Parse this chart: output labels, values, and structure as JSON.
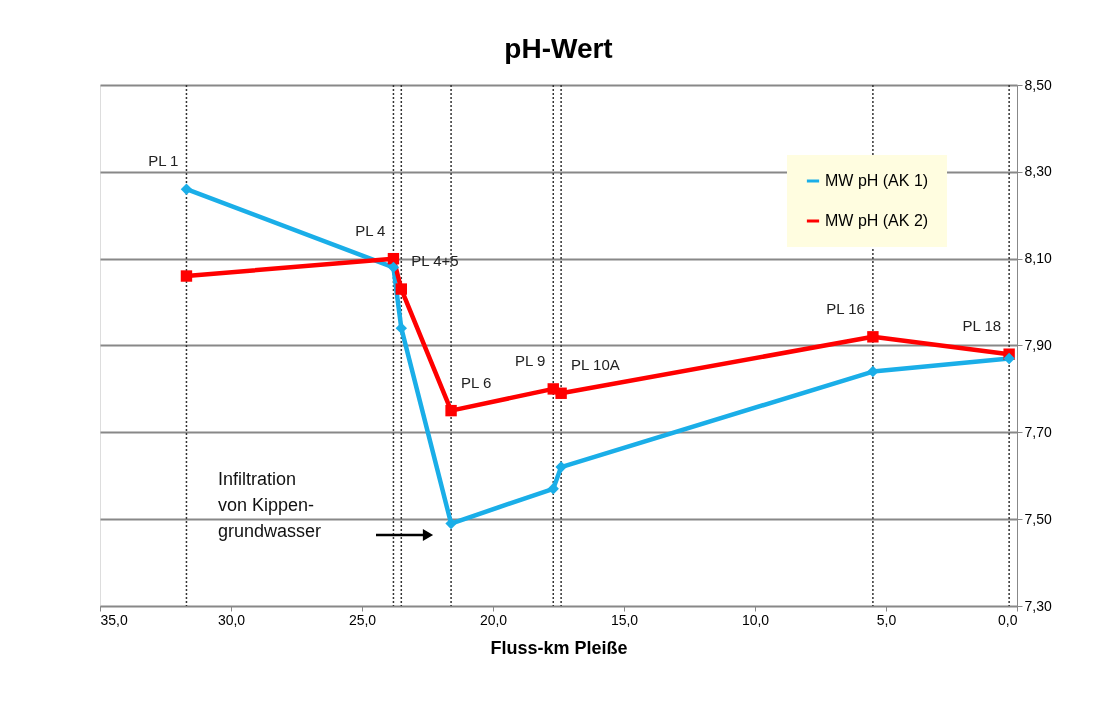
{
  "chart_data": {
    "type": "line",
    "title": "pH-Wert",
    "xlabel": "Fluss-km Pleiße",
    "xlim": [
      35,
      0
    ],
    "ylim": [
      7.3,
      8.5
    ],
    "xticks": [
      {
        "value": 35,
        "label": "35,0"
      },
      {
        "value": 30,
        "label": "30,0"
      },
      {
        "value": 25,
        "label": "25,0"
      },
      {
        "value": 20,
        "label": "20,0"
      },
      {
        "value": 15,
        "label": "15,0"
      },
      {
        "value": 10,
        "label": "10,0"
      },
      {
        "value": 5,
        "label": "5,0"
      },
      {
        "value": 0,
        "label": "0,0"
      }
    ],
    "yticks": [
      {
        "value": 7.3,
        "label": "7,30"
      },
      {
        "value": 7.5,
        "label": "7,50"
      },
      {
        "value": 7.7,
        "label": "7,70"
      },
      {
        "value": 7.9,
        "label": "7,90"
      },
      {
        "value": 8.1,
        "label": "8,10"
      },
      {
        "value": 8.3,
        "label": "8,30"
      },
      {
        "value": 8.5,
        "label": "8,50"
      }
    ],
    "x": [
      31.7,
      23.8,
      23.5,
      21.6,
      17.7,
      17.4,
      5.5,
      0.3
    ],
    "series": [
      {
        "name": "MW pH (AK 1)",
        "color": "#1aaee8",
        "marker": "diamond",
        "values": [
          8.26,
          8.08,
          7.94,
          7.49,
          7.57,
          7.62,
          7.84,
          7.87
        ]
      },
      {
        "name": "MW pH (AK 2)",
        "color": "#ff0000",
        "marker": "square",
        "values": [
          8.06,
          8.1,
          8.03,
          7.75,
          7.8,
          7.79,
          7.92,
          7.88
        ]
      }
    ],
    "ref_lines": [
      {
        "axis": "x",
        "value": 31.7,
        "label": "PL 1",
        "line_style": "dotted"
      },
      {
        "axis": "x",
        "value": 23.8,
        "label": "PL 4",
        "line_style": "dotted"
      },
      {
        "axis": "x",
        "value": 23.5,
        "label": "PL 4+5",
        "line_style": "dotted"
      },
      {
        "axis": "x",
        "value": 21.6,
        "label": "PL 6",
        "line_style": "dotted"
      },
      {
        "axis": "x",
        "value": 17.7,
        "label": "PL 9",
        "line_style": "dotted"
      },
      {
        "axis": "x",
        "value": 17.4,
        "label": "PL 10A",
        "line_style": "dotted"
      },
      {
        "axis": "x",
        "value": 5.5,
        "label": "PL 16",
        "line_style": "dotted"
      },
      {
        "axis": "x",
        "value": 0.3,
        "label": "PL 18",
        "line_style": "dotted"
      }
    ],
    "annotations": [
      "Infiltration\nvon Kippen-\ngrundwasser"
    ],
    "grid": "y",
    "legend": "top right",
    "line_style": "solid"
  }
}
